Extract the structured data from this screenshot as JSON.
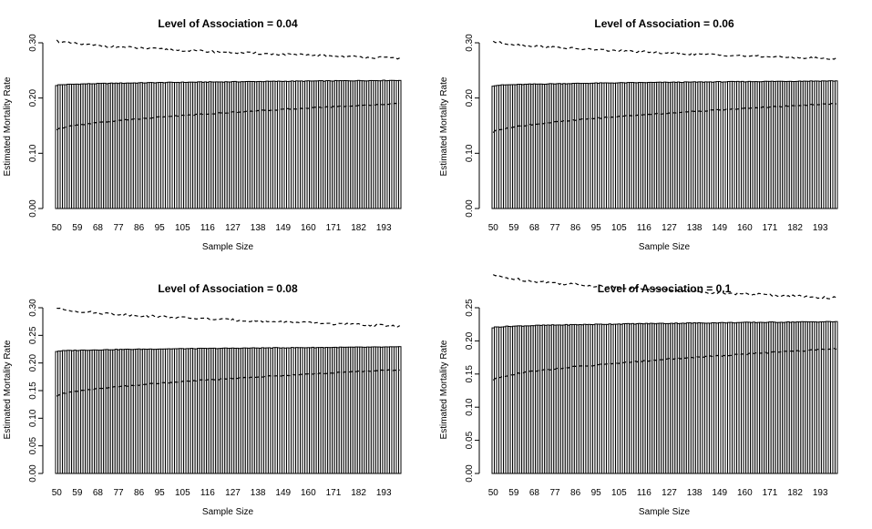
{
  "chart_data": [
    {
      "type": "bar",
      "title": "Level of Association = 0.04",
      "xlabel": "Sample Size",
      "ylabel": "Estimated Mortality Rate",
      "x_range": [
        50,
        200
      ],
      "x_tick_labels": [
        "50",
        "59",
        "68",
        "77",
        "86",
        "95",
        "105",
        "116",
        "127",
        "138",
        "149",
        "160",
        "171",
        "182",
        "193"
      ],
      "ylim": [
        0,
        0.3
      ],
      "y_tick_labels": [
        "0.00",
        "0.10",
        "0.20",
        "0.30"
      ],
      "bar_start": 0.223,
      "bar_end": 0.232,
      "upper_start": 0.304,
      "upper_end": 0.272,
      "lower_start": 0.142,
      "lower_end": 0.19,
      "series": [
        {
          "name": "",
          "kind": "bar",
          "description": "estimate"
        },
        {
          "name": "",
          "kind": "dashed",
          "description": "upper bound"
        },
        {
          "name": "",
          "kind": "dashed",
          "description": "lower bound"
        }
      ]
    },
    {
      "type": "bar",
      "title": "Level of Association = 0.06",
      "xlabel": "Sample Size",
      "ylabel": "Estimated Mortality Rate",
      "x_range": [
        50,
        200
      ],
      "x_tick_labels": [
        "50",
        "59",
        "68",
        "77",
        "86",
        "95",
        "105",
        "116",
        "127",
        "138",
        "149",
        "160",
        "171",
        "182",
        "193"
      ],
      "ylim": [
        0,
        0.3
      ],
      "y_tick_labels": [
        "0.00",
        "0.10",
        "0.20",
        "0.30"
      ],
      "bar_start": 0.222,
      "bar_end": 0.231,
      "upper_start": 0.303,
      "upper_end": 0.271,
      "lower_start": 0.138,
      "lower_end": 0.19,
      "series": [
        {
          "name": "",
          "kind": "bar",
          "description": "estimate"
        },
        {
          "name": "",
          "kind": "dashed",
          "description": "upper bound"
        },
        {
          "name": "",
          "kind": "dashed",
          "description": "lower bound"
        }
      ]
    },
    {
      "type": "bar",
      "title": "Level of Association = 0.08",
      "xlabel": "Sample Size",
      "ylabel": "Estimated Mortality Rate",
      "x_range": [
        50,
        200
      ],
      "x_tick_labels": [
        "50",
        "59",
        "68",
        "77",
        "86",
        "95",
        "105",
        "116",
        "127",
        "138",
        "149",
        "160",
        "171",
        "182",
        "193"
      ],
      "ylim": [
        0,
        0.3
      ],
      "y_tick_labels": [
        "0.00",
        "0.05",
        "0.10",
        "0.15",
        "0.20",
        "0.25",
        "0.30"
      ],
      "bar_start": 0.221,
      "bar_end": 0.229,
      "upper_start": 0.3,
      "upper_end": 0.267,
      "lower_start": 0.14,
      "lower_end": 0.188,
      "series": [
        {
          "name": "",
          "kind": "bar",
          "description": "estimate"
        },
        {
          "name": "",
          "kind": "dashed",
          "description": "upper bound"
        },
        {
          "name": "",
          "kind": "dashed",
          "description": "lower bound"
        }
      ]
    },
    {
      "type": "bar",
      "title": "Level of Association = 0.1",
      "xlabel": "Sample Size",
      "ylabel": "Estimated Mortality Rate",
      "x_range": [
        50,
        200
      ],
      "x_tick_labels": [
        "50",
        "59",
        "68",
        "77",
        "86",
        "95",
        "105",
        "116",
        "127",
        "138",
        "149",
        "160",
        "171",
        "182",
        "193"
      ],
      "ylim": [
        0,
        0.25
      ],
      "y_tick_labels": [
        "0.00",
        "0.05",
        "0.10",
        "0.15",
        "0.20",
        "0.25"
      ],
      "bar_start": 0.22,
      "bar_end": 0.229,
      "upper_start": 0.3,
      "upper_end": 0.265,
      "lower_start": 0.141,
      "lower_end": 0.188,
      "series": [
        {
          "name": "",
          "kind": "bar",
          "description": "estimate"
        },
        {
          "name": "",
          "kind": "dashed",
          "description": "upper bound"
        },
        {
          "name": "",
          "kind": "dashed",
          "description": "lower bound"
        }
      ]
    }
  ]
}
